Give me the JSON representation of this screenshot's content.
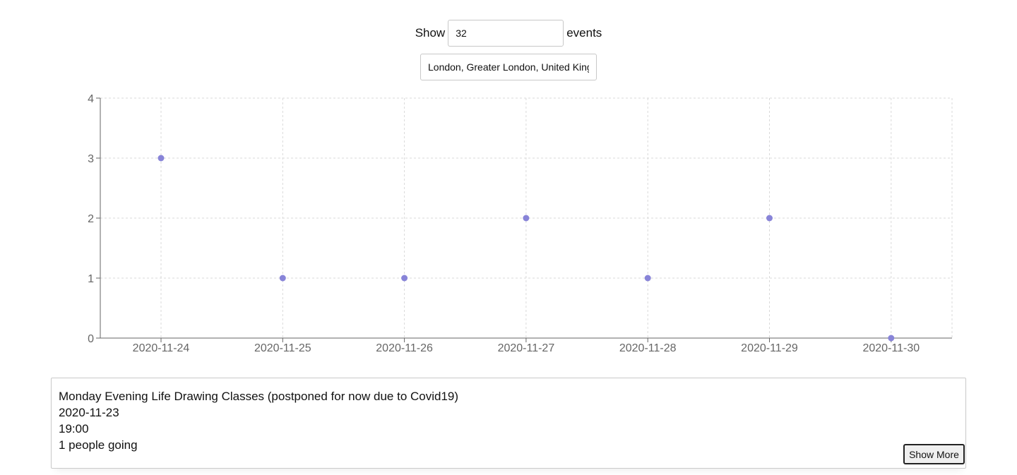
{
  "controls": {
    "show_label": "Show",
    "count_value": "32",
    "events_label": "events",
    "location_value": "London, Greater London, United Kingdom"
  },
  "colors": {
    "point": "#8884d8",
    "grid": "#d9d9d9",
    "axis": "#666666"
  },
  "chart_data": {
    "type": "scatter",
    "categories": [
      "2020-11-24",
      "2020-11-25",
      "2020-11-26",
      "2020-11-27",
      "2020-11-28",
      "2020-11-29",
      "2020-11-30"
    ],
    "values": [
      3,
      1,
      1,
      2,
      1,
      2,
      0
    ],
    "yticks": [
      0,
      1,
      2,
      3,
      4
    ],
    "ylim": [
      0,
      4
    ],
    "grid": true,
    "title": "",
    "xlabel": "",
    "ylabel": ""
  },
  "event": {
    "title": "Monday Evening Life Drawing Classes (postponed for now due to Covid19)",
    "date": "2020-11-23",
    "time": "19:00",
    "going": "1 people going",
    "show_more_label": "Show More"
  }
}
